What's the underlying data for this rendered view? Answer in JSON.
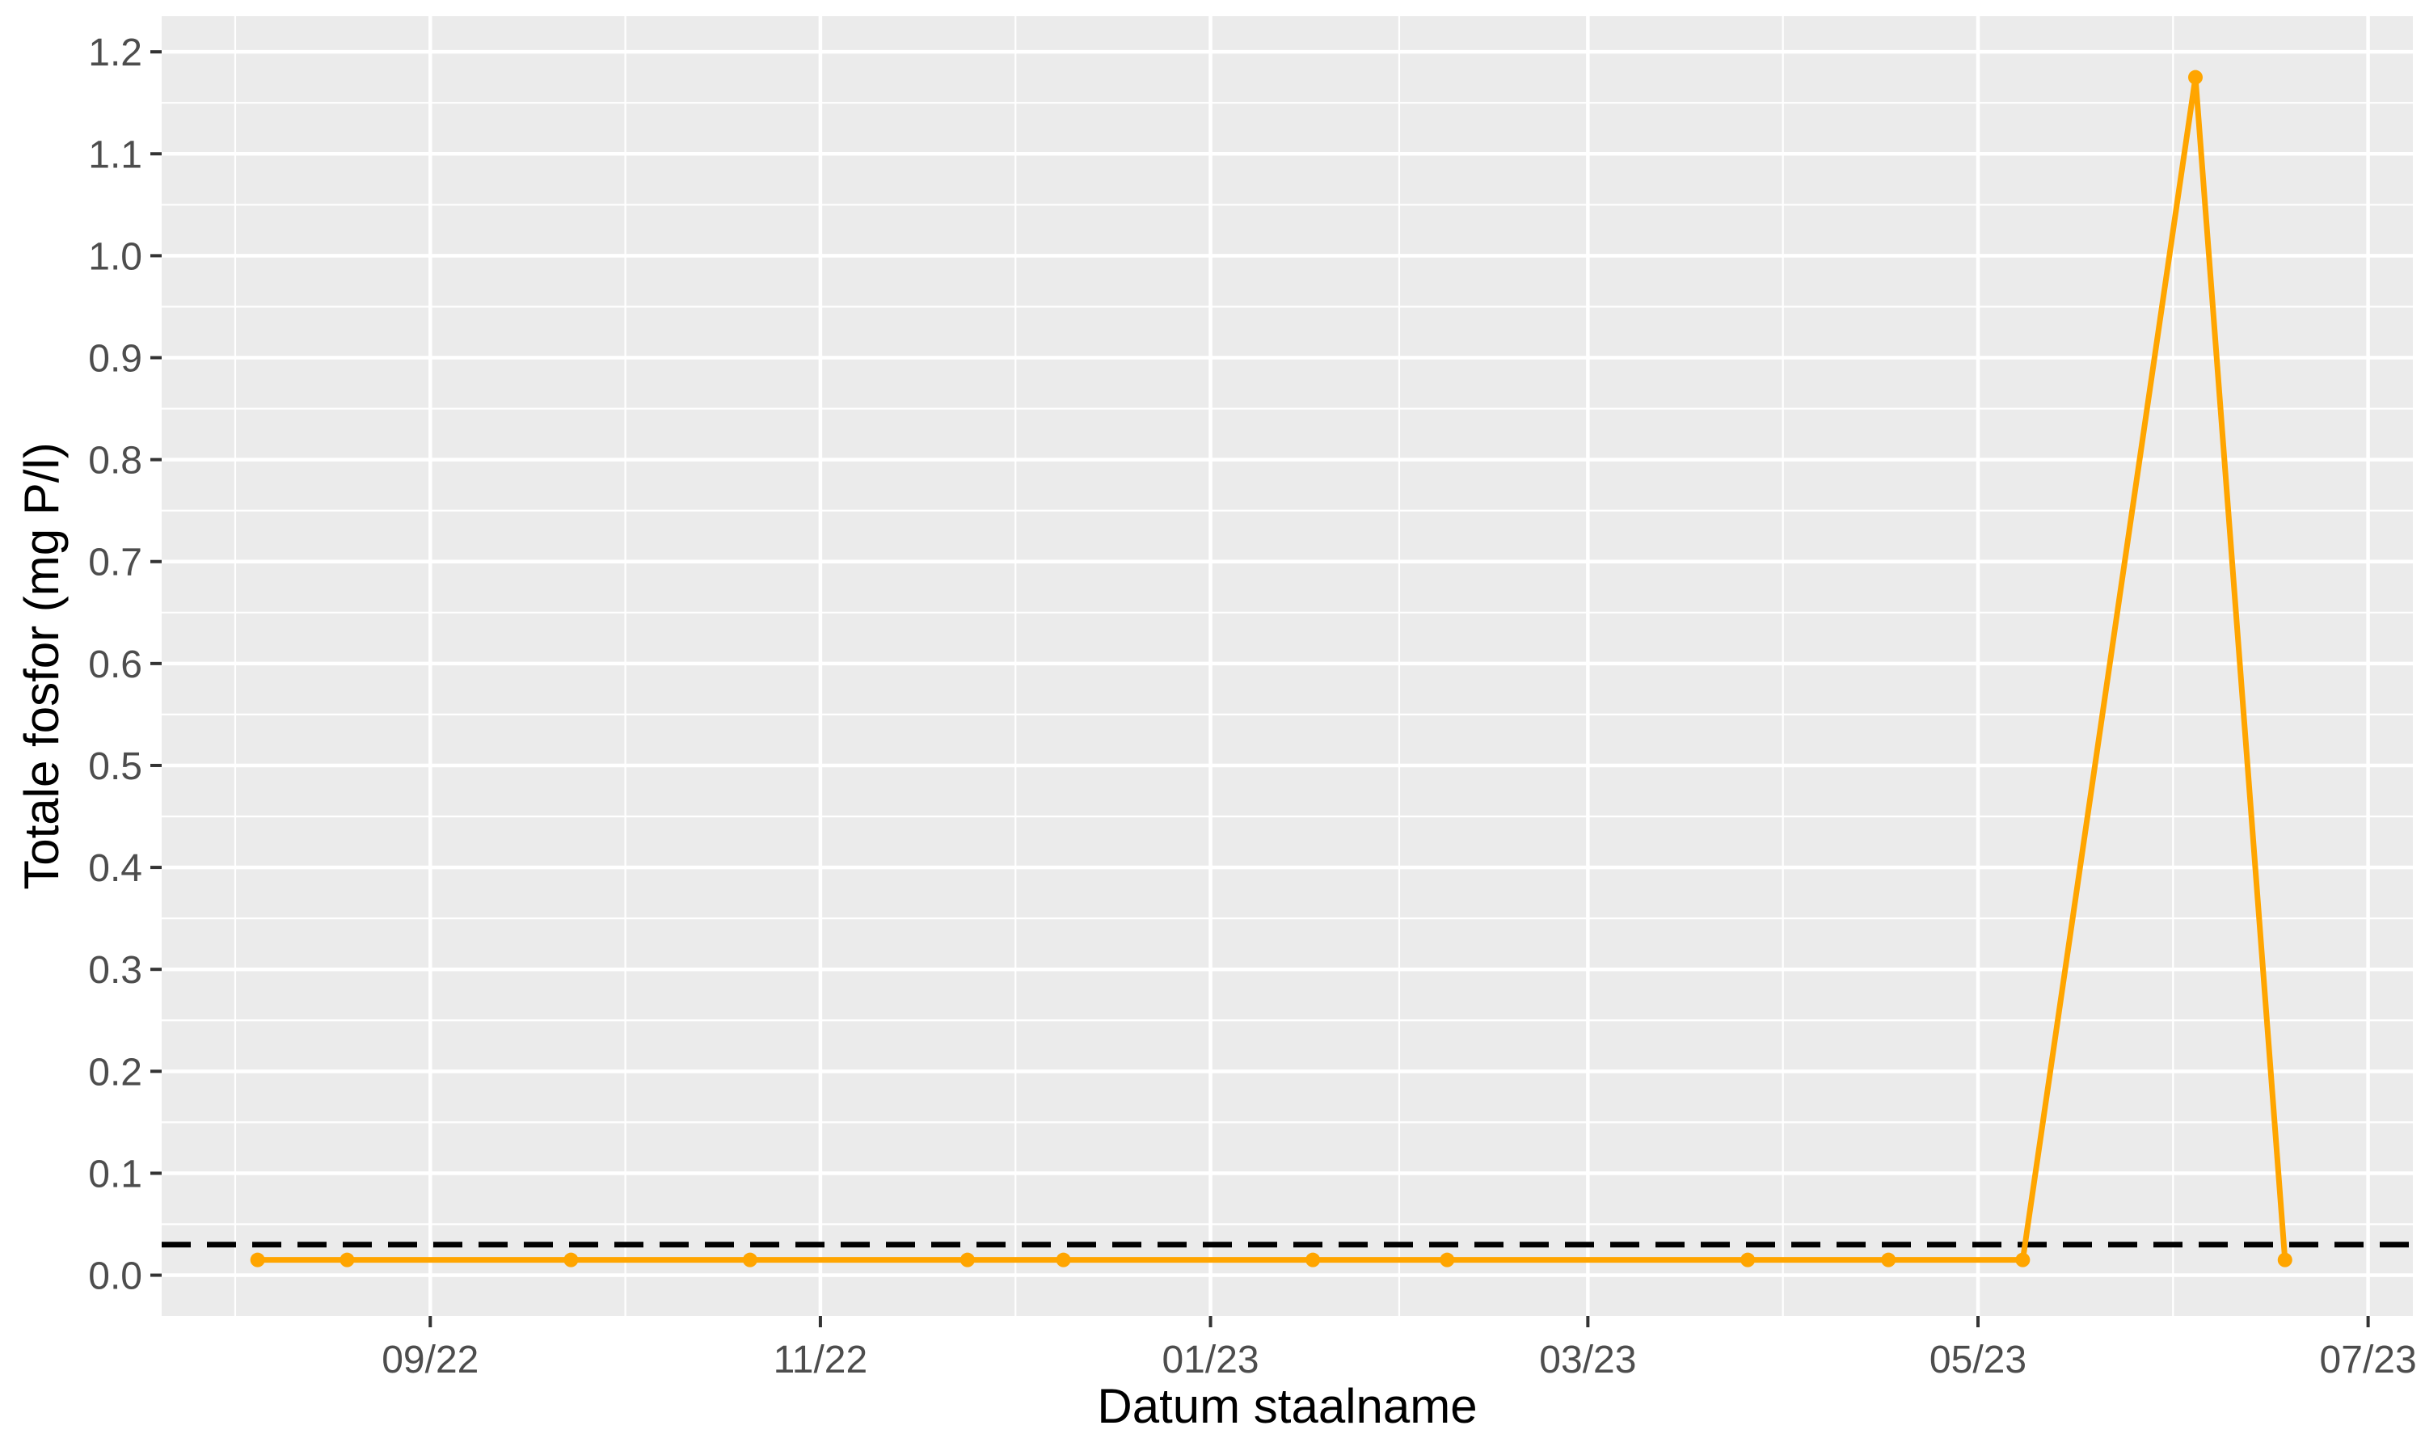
{
  "chart_data": {
    "type": "line",
    "title": "",
    "xlabel": "Datum staalname",
    "ylabel": "Totale fosfor (mg P/l)",
    "x_axis_type": "date",
    "xlim": [
      "2022-07-21",
      "2023-07-08"
    ],
    "ylim": [
      -0.04,
      1.235
    ],
    "x_ticks": [
      {
        "date": "2022-09-01",
        "label": "09/22"
      },
      {
        "date": "2022-11-01",
        "label": "11/22"
      },
      {
        "date": "2023-01-01",
        "label": "01/23"
      },
      {
        "date": "2023-03-01",
        "label": "03/23"
      },
      {
        "date": "2023-05-01",
        "label": "05/23"
      },
      {
        "date": "2023-07-01",
        "label": "07/23"
      }
    ],
    "y_ticks": [
      0.0,
      0.1,
      0.2,
      0.3,
      0.4,
      0.5,
      0.6,
      0.7,
      0.8,
      0.9,
      1.0,
      1.1,
      1.2
    ],
    "y_tick_labels": [
      "0.0",
      "0.1",
      "0.2",
      "0.3",
      "0.4",
      "0.5",
      "0.6",
      "0.7",
      "0.8",
      "0.9",
      "1.0",
      "1.1",
      "1.2"
    ],
    "grid": true,
    "series": [
      {
        "color": "#FFA500",
        "x": [
          "2022-08-05",
          "2022-08-19",
          "2022-09-23",
          "2022-10-21",
          "2022-11-24",
          "2022-12-09",
          "2023-01-17",
          "2023-02-07",
          "2023-03-26",
          "2023-04-17",
          "2023-05-08",
          "2023-06-04",
          "2023-06-18"
        ],
        "y": [
          0.015,
          0.015,
          0.015,
          0.015,
          0.015,
          0.015,
          0.015,
          0.015,
          0.015,
          0.015,
          0.015,
          1.175,
          0.015
        ]
      }
    ],
    "reference_line": {
      "y": 0.03,
      "style": "dashed",
      "color": "#000000"
    }
  }
}
